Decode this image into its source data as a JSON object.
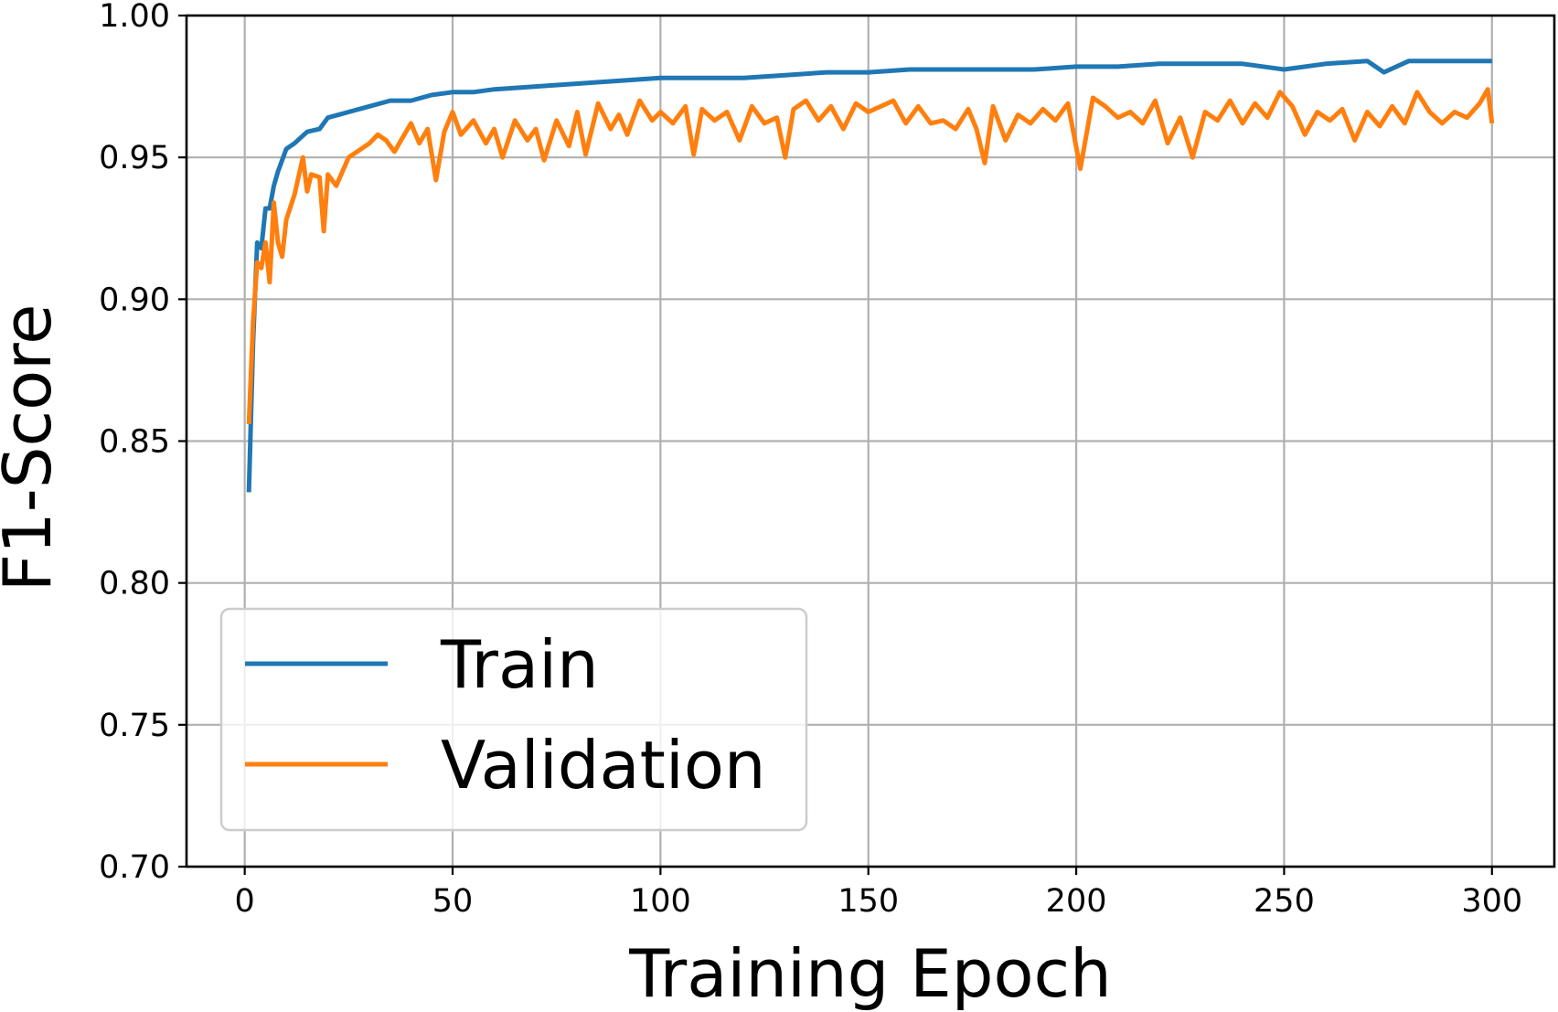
{
  "chart_data": {
    "type": "line",
    "title": "",
    "xlabel": "Training Epoch",
    "ylabel": "F1-Score",
    "xlim": [
      -14,
      315
    ],
    "ylim": [
      0.7,
      1.0
    ],
    "xticks": [
      0,
      50,
      100,
      150,
      200,
      250,
      300
    ],
    "xtick_labels": [
      "0",
      "50",
      "100",
      "150",
      "200",
      "250",
      "300"
    ],
    "yticks": [
      0.7,
      0.75,
      0.8,
      0.85,
      0.9,
      0.95,
      1.0
    ],
    "ytick_labels": [
      "0.70",
      "0.75",
      "0.80",
      "0.85",
      "0.90",
      "0.95",
      "1.00"
    ],
    "grid": true,
    "legend_position": "lower-left",
    "series": [
      {
        "name": "Train",
        "color": "#1f77b4",
        "x": [
          1,
          2,
          3,
          4,
          5,
          6,
          7,
          8,
          10,
          12,
          15,
          18,
          20,
          25,
          30,
          35,
          40,
          45,
          50,
          55,
          60,
          70,
          80,
          90,
          100,
          110,
          120,
          130,
          140,
          150,
          160,
          170,
          180,
          190,
          200,
          210,
          220,
          230,
          240,
          250,
          260,
          270,
          274,
          280,
          290,
          300
        ],
        "values": [
          0.832,
          0.885,
          0.92,
          0.918,
          0.932,
          0.932,
          0.94,
          0.945,
          0.953,
          0.955,
          0.959,
          0.96,
          0.964,
          0.966,
          0.968,
          0.97,
          0.97,
          0.972,
          0.973,
          0.973,
          0.974,
          0.975,
          0.976,
          0.977,
          0.978,
          0.978,
          0.978,
          0.979,
          0.98,
          0.98,
          0.981,
          0.981,
          0.981,
          0.981,
          0.982,
          0.982,
          0.983,
          0.983,
          0.983,
          0.981,
          0.983,
          0.984,
          0.98,
          0.984,
          0.984,
          0.984
        ]
      },
      {
        "name": "Validation",
        "color": "#ff7f0e",
        "x": [
          1,
          2,
          3,
          4,
          5,
          6,
          7,
          8,
          9,
          10,
          12,
          14,
          15,
          16,
          18,
          19,
          20,
          22,
          25,
          28,
          30,
          32,
          34,
          36,
          38,
          40,
          42,
          44,
          46,
          48,
          50,
          52,
          55,
          58,
          60,
          62,
          65,
          68,
          70,
          72,
          75,
          78,
          80,
          82,
          85,
          88,
          90,
          92,
          95,
          98,
          100,
          103,
          106,
          108,
          110,
          113,
          116,
          119,
          122,
          125,
          128,
          130,
          132,
          135,
          138,
          141,
          144,
          147,
          150,
          153,
          156,
          159,
          162,
          165,
          168,
          171,
          174,
          176,
          178,
          180,
          183,
          186,
          189,
          192,
          195,
          198,
          201,
          204,
          207,
          210,
          213,
          216,
          219,
          222,
          225,
          228,
          231,
          234,
          237,
          240,
          243,
          246,
          249,
          252,
          255,
          258,
          261,
          264,
          267,
          270,
          273,
          276,
          279,
          282,
          285,
          288,
          291,
          294,
          297,
          299,
          300
        ],
        "values": [
          0.856,
          0.892,
          0.913,
          0.911,
          0.92,
          0.906,
          0.934,
          0.92,
          0.915,
          0.928,
          0.937,
          0.95,
          0.938,
          0.944,
          0.943,
          0.924,
          0.944,
          0.94,
          0.95,
          0.953,
          0.955,
          0.958,
          0.956,
          0.952,
          0.957,
          0.962,
          0.955,
          0.96,
          0.942,
          0.959,
          0.966,
          0.958,
          0.963,
          0.955,
          0.96,
          0.95,
          0.963,
          0.956,
          0.96,
          0.949,
          0.963,
          0.954,
          0.966,
          0.951,
          0.969,
          0.96,
          0.965,
          0.958,
          0.97,
          0.963,
          0.966,
          0.962,
          0.968,
          0.951,
          0.967,
          0.963,
          0.966,
          0.956,
          0.968,
          0.962,
          0.964,
          0.95,
          0.967,
          0.97,
          0.963,
          0.968,
          0.96,
          0.969,
          0.966,
          0.968,
          0.97,
          0.962,
          0.968,
          0.962,
          0.963,
          0.96,
          0.967,
          0.96,
          0.948,
          0.968,
          0.956,
          0.965,
          0.962,
          0.967,
          0.963,
          0.969,
          0.946,
          0.971,
          0.968,
          0.964,
          0.966,
          0.962,
          0.97,
          0.955,
          0.964,
          0.95,
          0.966,
          0.963,
          0.97,
          0.962,
          0.969,
          0.964,
          0.973,
          0.968,
          0.958,
          0.966,
          0.963,
          0.967,
          0.956,
          0.966,
          0.961,
          0.968,
          0.962,
          0.973,
          0.966,
          0.962,
          0.966,
          0.964,
          0.969,
          0.974,
          0.962
        ]
      }
    ]
  }
}
